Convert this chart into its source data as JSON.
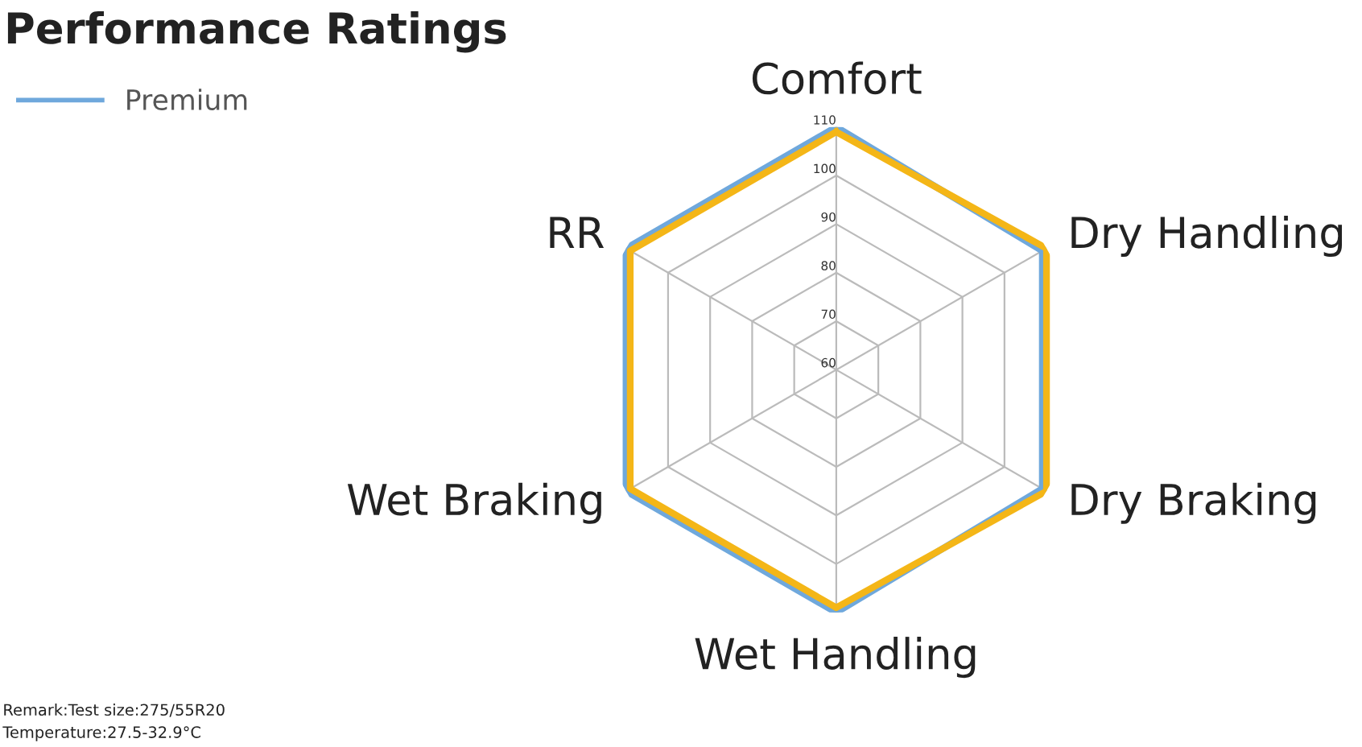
{
  "chart_data": {
    "type": "radar",
    "title": "Performance Ratings",
    "categories": [
      "Comfort",
      "Dry Handling",
      "Dry Braking",
      "Wet Handling",
      "Wet Braking",
      "RR"
    ],
    "series": [
      {
        "name": "Premium",
        "color": "#6fa8dc",
        "values": [
          110,
          109,
          109,
          110,
          110,
          110
        ]
      },
      {
        "color": "#f4b617",
        "values": [
          109,
          110,
          110,
          109,
          109,
          109
        ]
      }
    ],
    "ylim": [
      60,
      110
    ],
    "yticks": [
      60,
      70,
      80,
      90,
      100,
      110
    ],
    "grid": true,
    "legend": "top left",
    "annotations": [
      "Remark:Test size:275/55R20",
      "Temperature:27.5-32.9°C"
    ]
  }
}
